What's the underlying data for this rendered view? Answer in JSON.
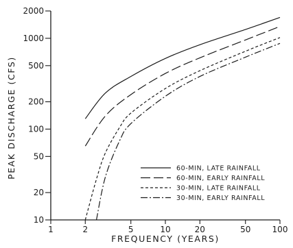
{
  "chart_data": {
    "type": "line",
    "xlabel": "FREQUENCY (YEARS)",
    "ylabel": "PEAK DISCHARGE (CFS)",
    "x_scale": "log",
    "y_scale": "log",
    "xlim": [
      1,
      100
    ],
    "ylim": [
      10,
      2000
    ],
    "x_ticks": [
      1,
      2,
      5,
      10,
      20,
      50,
      100
    ],
    "y_ticks": [
      10,
      20,
      50,
      100,
      200,
      500,
      1000,
      2000
    ],
    "grid": false,
    "legend_position": "lower-right",
    "series": [
      {
        "name": "60-MIN, LATE RAINFALL",
        "dash": "solid",
        "x": [
          2,
          3,
          5,
          10,
          20,
          50,
          100
        ],
        "y": [
          130,
          250,
          380,
          600,
          850,
          1250,
          1700
        ]
      },
      {
        "name": "60-MIN, EARLY RAINFALL",
        "dash": "long-dash",
        "x": [
          2,
          3,
          5,
          10,
          20,
          50,
          100
        ],
        "y": [
          65,
          140,
          240,
          410,
          610,
          960,
          1350
        ]
      },
      {
        "name": "30-MIN, LATE RAINFALL",
        "dash": "short-dash",
        "x": [
          2,
          2.5,
          3,
          4,
          5,
          10,
          20,
          50,
          100
        ],
        "y": [
          10,
          28,
          55,
          105,
          150,
          280,
          440,
          720,
          1020
        ]
      },
      {
        "name": "30-MIN, EARLY RAINFALL",
        "dash": "dash-dot",
        "x": [
          2.5,
          3,
          4,
          5,
          10,
          20,
          50,
          100
        ],
        "y": [
          10,
          30,
          75,
          115,
          230,
          380,
          620,
          880
        ]
      }
    ]
  }
}
